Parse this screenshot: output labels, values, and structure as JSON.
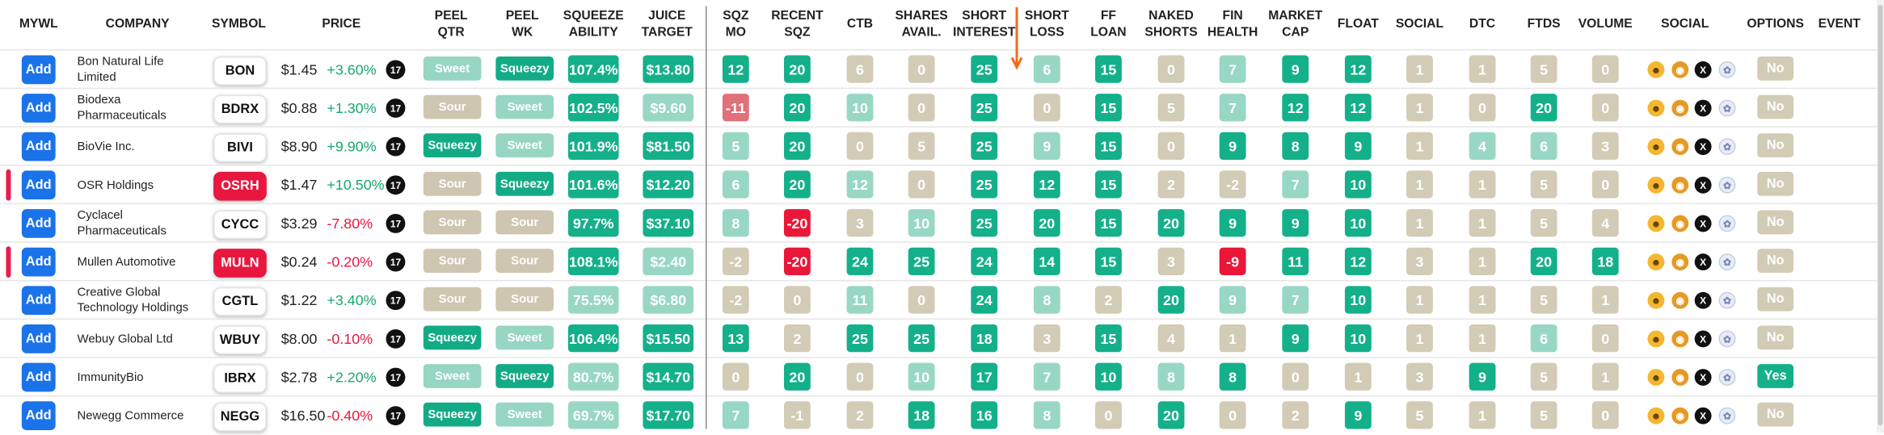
{
  "headers": {
    "mywl": "MYWL",
    "company": "COMPANY",
    "symbol": "SYMBOL",
    "price": "PRICE",
    "peel_qtr": "PEEL\nQTR",
    "peel_wk": "PEEL\nWK",
    "squeeze_ability": "SQUEEZE\nABILITY",
    "juice_target": "JUICE\nTARGET",
    "sqz_mo": "SQZ\nMO",
    "recent_sqz": "RECENT\nSQZ",
    "ctb": "CTB",
    "shares_avail": "SHARES\nAVAIL.",
    "short_interest": "SHORT\nINTEREST",
    "short_loss": "SHORT\nLOSS",
    "ff_loan": "FF\nLOAN",
    "naked_shorts": "NAKED\nSHORTS",
    "fin_health": "FIN\nHEALTH",
    "market_cap": "MARKET\nCAP",
    "float": "FLOAT",
    "social": "SOCIAL",
    "dtc": "DTC",
    "ftds": "FTDS",
    "volume": "VOLUME",
    "social2": "SOCIAL",
    "options": "OPTIONS",
    "event": "EVENT"
  },
  "add_label": "Add",
  "tv_icon_label": "17",
  "social_icons": [
    "wsb-icon",
    "doge-icon",
    "x-icon",
    "stocktwits-icon"
  ],
  "rows": [
    {
      "company": "Bon Natural Life Limited",
      "symbol": "BON",
      "symbol_red": false,
      "price": "$1.45",
      "change": "+3.60%",
      "pos": true,
      "peel_qtr": "Sweet",
      "peel_wk": "Squeezy",
      "squeeze": "107.4%",
      "juice": "$13.80",
      "sqz_mo": "12",
      "recent_sqz": "20",
      "ctb": "6",
      "shares_avail": "0",
      "short_interest": "25",
      "short_loss": "6",
      "ff_loan": "15",
      "naked": "0",
      "fin_health": "7",
      "mcap": "9",
      "float": "12",
      "social": "1",
      "dtc": "1",
      "ftds": "5",
      "volume": "0",
      "options": "No",
      "highlight": false
    },
    {
      "company": "Biodexa Pharmaceuticals",
      "symbol": "BDRX",
      "symbol_red": false,
      "price": "$0.88",
      "change": "+1.30%",
      "pos": true,
      "peel_qtr": "Sour",
      "peel_wk": "Sweet",
      "squeeze": "102.5%",
      "juice": "$9.60",
      "sqz_mo": "-11",
      "recent_sqz": "20",
      "ctb": "10",
      "shares_avail": "0",
      "short_interest": "25",
      "short_loss": "0",
      "ff_loan": "15",
      "naked": "5",
      "fin_health": "7",
      "mcap": "12",
      "float": "12",
      "social": "1",
      "dtc": "0",
      "ftds": "20",
      "volume": "0",
      "options": "No",
      "highlight": false
    },
    {
      "company": "BioVie Inc.",
      "symbol": "BIVI",
      "symbol_red": false,
      "price": "$8.90",
      "change": "+9.90%",
      "pos": true,
      "peel_qtr": "Squeezy",
      "peel_wk": "Sweet",
      "squeeze": "101.9%",
      "juice": "$81.50",
      "sqz_mo": "5",
      "recent_sqz": "20",
      "ctb": "0",
      "shares_avail": "5",
      "short_interest": "25",
      "short_loss": "9",
      "ff_loan": "15",
      "naked": "0",
      "fin_health": "9",
      "mcap": "8",
      "float": "9",
      "social": "1",
      "dtc": "4",
      "ftds": "6",
      "volume": "3",
      "options": "No",
      "highlight": false
    },
    {
      "company": "OSR Holdings",
      "symbol": "OSRH",
      "symbol_red": true,
      "price": "$1.47",
      "change": "+10.50%",
      "pos": true,
      "peel_qtr": "Sour",
      "peel_wk": "Squeezy",
      "squeeze": "101.6%",
      "juice": "$12.20",
      "sqz_mo": "6",
      "recent_sqz": "20",
      "ctb": "12",
      "shares_avail": "0",
      "short_interest": "25",
      "short_loss": "12",
      "ff_loan": "15",
      "naked": "2",
      "fin_health": "-2",
      "mcap": "7",
      "float": "10",
      "social": "1",
      "dtc": "1",
      "ftds": "5",
      "volume": "0",
      "options": "No",
      "highlight": true
    },
    {
      "company": "Cyclacel Pharmaceuticals",
      "symbol": "CYCC",
      "symbol_red": false,
      "price": "$3.29",
      "change": "-7.80%",
      "pos": false,
      "peel_qtr": "Sour",
      "peel_wk": "Sour",
      "squeeze": "97.7%",
      "juice": "$37.10",
      "sqz_mo": "8",
      "recent_sqz": "-20",
      "ctb": "3",
      "shares_avail": "10",
      "short_interest": "25",
      "short_loss": "20",
      "ff_loan": "15",
      "naked": "20",
      "fin_health": "9",
      "mcap": "9",
      "float": "10",
      "social": "1",
      "dtc": "1",
      "ftds": "5",
      "volume": "4",
      "options": "No",
      "highlight": false
    },
    {
      "company": "Mullen Automotive",
      "symbol": "MULN",
      "symbol_red": true,
      "price": "$0.24",
      "change": "-0.20%",
      "pos": false,
      "peel_qtr": "Sour",
      "peel_wk": "Sour",
      "squeeze": "108.1%",
      "juice": "$2.40",
      "sqz_mo": "-2",
      "recent_sqz": "-20",
      "ctb": "24",
      "shares_avail": "25",
      "short_interest": "24",
      "short_loss": "14",
      "ff_loan": "15",
      "naked": "3",
      "fin_health": "-9",
      "mcap": "11",
      "float": "12",
      "social": "3",
      "dtc": "1",
      "ftds": "20",
      "volume": "18",
      "options": "No",
      "highlight": true
    },
    {
      "company": "Creative Global Technology Holdings",
      "symbol": "CGTL",
      "symbol_red": false,
      "price": "$1.22",
      "change": "+3.40%",
      "pos": true,
      "peel_qtr": "Sour",
      "peel_wk": "Sour",
      "squeeze": "75.5%",
      "juice": "$6.80",
      "sqz_mo": "-2",
      "recent_sqz": "0",
      "ctb": "11",
      "shares_avail": "0",
      "short_interest": "24",
      "short_loss": "8",
      "ff_loan": "2",
      "naked": "20",
      "fin_health": "9",
      "mcap": "7",
      "float": "10",
      "social": "1",
      "dtc": "1",
      "ftds": "5",
      "volume": "1",
      "options": "No",
      "highlight": false
    },
    {
      "company": "Webuy Global Ltd",
      "symbol": "WBUY",
      "symbol_red": false,
      "price": "$8.00",
      "change": "-0.10%",
      "pos": false,
      "peel_qtr": "Squeezy",
      "peel_wk": "Sweet",
      "squeeze": "106.4%",
      "juice": "$15.50",
      "sqz_mo": "13",
      "recent_sqz": "2",
      "ctb": "25",
      "shares_avail": "25",
      "short_interest": "18",
      "short_loss": "3",
      "ff_loan": "15",
      "naked": "4",
      "fin_health": "1",
      "mcap": "9",
      "float": "10",
      "social": "1",
      "dtc": "1",
      "ftds": "6",
      "volume": "0",
      "options": "No",
      "highlight": false
    },
    {
      "company": "ImmunityBio",
      "symbol": "IBRX",
      "symbol_red": false,
      "price": "$2.78",
      "change": "+2.20%",
      "pos": true,
      "peel_qtr": "Sweet",
      "peel_wk": "Squeezy",
      "squeeze": "80.7%",
      "juice": "$14.70",
      "sqz_mo": "0",
      "recent_sqz": "20",
      "ctb": "0",
      "shares_avail": "10",
      "short_interest": "17",
      "short_loss": "7",
      "ff_loan": "10",
      "naked": "8",
      "fin_health": "8",
      "mcap": "0",
      "float": "1",
      "social": "3",
      "dtc": "9",
      "ftds": "5",
      "volume": "1",
      "options": "Yes",
      "highlight": false
    },
    {
      "company": "Newegg Commerce",
      "symbol": "NEGG",
      "symbol_red": false,
      "price": "$16.50",
      "change": "-0.40%",
      "pos": false,
      "peel_qtr": "Squeezy",
      "peel_wk": "Sweet",
      "squeeze": "69.7%",
      "juice": "$17.70",
      "sqz_mo": "7",
      "recent_sqz": "-1",
      "ctb": "2",
      "shares_avail": "18",
      "short_interest": "16",
      "short_loss": "8",
      "ff_loan": "0",
      "naked": "20",
      "fin_health": "0",
      "mcap": "2",
      "float": "9",
      "social": "5",
      "dtc": "1",
      "ftds": "5",
      "volume": "0",
      "options": "No",
      "highlight": false
    }
  ]
}
